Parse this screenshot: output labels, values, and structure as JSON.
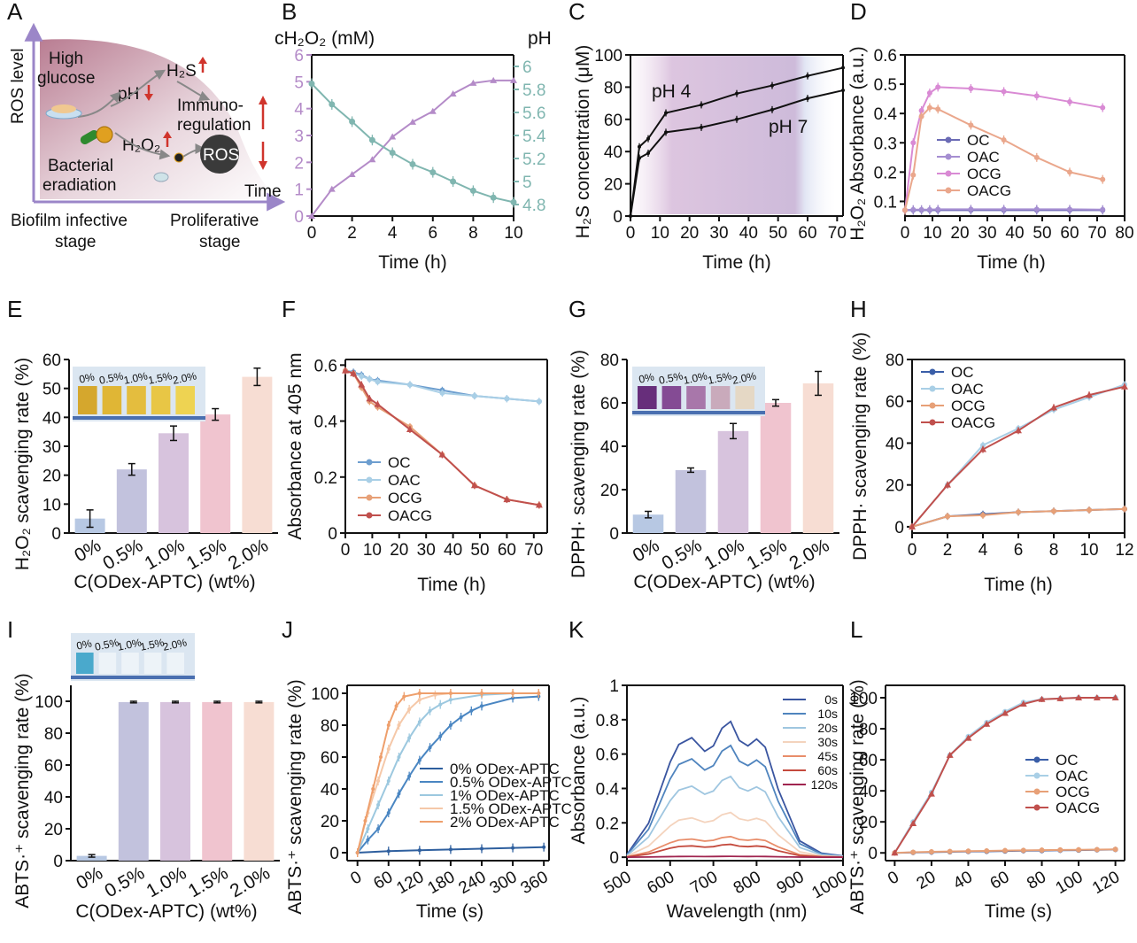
{
  "panel_letters": [
    "A",
    "B",
    "C",
    "D",
    "E",
    "F",
    "G",
    "H",
    "I",
    "J",
    "K",
    "L"
  ],
  "schematic": {
    "ylabel": "ROS level",
    "xlabel": "Time",
    "high_glucose": "High\nglucose",
    "ph": "pH",
    "h2s": "H₂S",
    "h2o2": "H₂O₂",
    "immuno": "Immuno-\nregulation",
    "bacterial": "Bacterial\neradiation",
    "ros": "ROS",
    "stage1": "Biofilm infective\nstage",
    "stage2": "Proliferative\nstage",
    "colors": {
      "fill": "#b97d92",
      "arrow_up": "#d0342c",
      "axis": "#9b86c8"
    }
  },
  "chart_data": [
    {
      "panel": "B",
      "type": "line",
      "xlabel": "Time (h)",
      "ylabel_left": "cH₂O₂ (mM)",
      "ylabel_right": "pH",
      "xlim": [
        0,
        10
      ],
      "ylim": [
        0,
        6
      ],
      "y2lim": [
        4.7,
        6.1
      ],
      "xticks": [
        0,
        2,
        4,
        6,
        8,
        10
      ],
      "yticks": [
        0,
        1,
        2,
        3,
        4,
        5,
        6
      ],
      "y2ticks": [
        4.8,
        5.0,
        5.2,
        5.4,
        5.6,
        5.8,
        6.0
      ],
      "series": [
        {
          "name": "cH₂O₂",
          "color": "#b48bc8",
          "axis": "left",
          "x": [
            0,
            1,
            2,
            3,
            4,
            5,
            6,
            7,
            8,
            9,
            10
          ],
          "y": [
            0,
            1.0,
            1.55,
            2.1,
            2.95,
            3.5,
            3.9,
            4.55,
            4.95,
            5.05,
            5.05
          ]
        },
        {
          "name": "pH",
          "color": "#80b6b0",
          "axis": "right",
          "x": [
            0,
            1,
            2,
            3,
            4,
            5,
            6,
            7,
            8,
            9,
            10
          ],
          "y": [
            5.85,
            5.67,
            5.52,
            5.36,
            5.25,
            5.15,
            5.08,
            5.0,
            4.92,
            4.86,
            4.82
          ]
        }
      ]
    },
    {
      "panel": "C",
      "type": "line",
      "xlabel": "Time (h)",
      "ylabel": "H₂S concentration (μM)",
      "xlim": [
        0,
        72
      ],
      "ylim": [
        0,
        100
      ],
      "xticks": [
        0,
        10,
        20,
        30,
        40,
        50,
        60,
        70
      ],
      "yticks": [
        0,
        20,
        40,
        60,
        80,
        100
      ],
      "annotations": [
        "pH 4",
        "pH 7"
      ],
      "series": [
        {
          "name": "pH 4",
          "color": "#111111",
          "x": [
            0,
            3,
            6,
            12,
            24,
            36,
            48,
            60,
            72
          ],
          "y": [
            0,
            43,
            48,
            64,
            69,
            76,
            81,
            87,
            92
          ]
        },
        {
          "name": "pH 7",
          "color": "#111111",
          "x": [
            0,
            3,
            6,
            12,
            24,
            36,
            48,
            60,
            72
          ],
          "y": [
            0,
            36,
            39,
            52,
            55,
            60,
            66,
            73,
            78
          ]
        }
      ]
    },
    {
      "panel": "D",
      "type": "line",
      "xlabel": "Time (h)",
      "ylabel": "H₂O₂ Absorbance (a.u.)",
      "xlim": [
        0,
        80
      ],
      "ylim": [
        0.05,
        0.6
      ],
      "xticks": [
        0,
        10,
        20,
        30,
        40,
        50,
        60,
        70,
        80
      ],
      "yticks": [
        0.1,
        0.2,
        0.3,
        0.4,
        0.5,
        0.6
      ],
      "series": [
        {
          "name": "OC",
          "color": "#6b6bb5",
          "x": [
            0,
            3,
            6,
            9,
            12,
            24,
            36,
            48,
            60,
            72
          ],
          "y": [
            0.07,
            0.07,
            0.07,
            0.07,
            0.07,
            0.07,
            0.07,
            0.07,
            0.07,
            0.07
          ]
        },
        {
          "name": "OAC",
          "color": "#a58ed1",
          "x": [
            0,
            3,
            6,
            9,
            12,
            24,
            36,
            48,
            60,
            72
          ],
          "y": [
            0.07,
            0.072,
            0.072,
            0.072,
            0.073,
            0.073,
            0.073,
            0.073,
            0.073,
            0.072
          ]
        },
        {
          "name": "OCG",
          "color": "#d98ad4",
          "x": [
            0,
            3,
            6,
            9,
            12,
            24,
            36,
            48,
            60,
            72
          ],
          "y": [
            0.07,
            0.3,
            0.41,
            0.47,
            0.49,
            0.485,
            0.475,
            0.46,
            0.44,
            0.42
          ]
        },
        {
          "name": "OACG",
          "color": "#eaa78c",
          "x": [
            0,
            3,
            6,
            9,
            12,
            24,
            36,
            48,
            60,
            72
          ],
          "y": [
            0.07,
            0.19,
            0.39,
            0.42,
            0.415,
            0.36,
            0.31,
            0.25,
            0.2,
            0.175
          ]
        }
      ]
    },
    {
      "panel": "E",
      "type": "bar",
      "xlabel": "C(ODex-APTC) (wt%)",
      "ylabel": "H₂O₂ scavenging rate (%)",
      "ylim": [
        0,
        60
      ],
      "yticks": [
        0,
        10,
        20,
        30,
        40,
        50,
        60
      ],
      "categories": [
        "0%",
        "0.5%",
        "1.0%",
        "1.5%",
        "2.0%"
      ],
      "values": [
        5,
        22,
        34.5,
        41,
        54
      ],
      "errors": [
        3,
        2,
        2.5,
        2,
        3
      ],
      "colors": [
        "#b7c8e3",
        "#c2c2dd",
        "#d7c3dd",
        "#f0c4cf",
        "#f7ddd3"
      ]
    },
    {
      "panel": "F",
      "type": "line",
      "xlabel": "Time (h)",
      "ylabel": "Absorbance at 405 nm",
      "xlim": [
        0,
        75
      ],
      "ylim": [
        0,
        0.62
      ],
      "xticks": [
        0,
        10,
        20,
        30,
        40,
        50,
        60,
        70
      ],
      "yticks": [
        0,
        0.2,
        0.4,
        0.6
      ],
      "series": [
        {
          "name": "OC",
          "color": "#6d9ecf",
          "x": [
            0,
            3,
            6,
            9,
            12,
            24,
            36,
            48,
            60,
            72
          ],
          "y": [
            0.58,
            0.575,
            0.565,
            0.55,
            0.545,
            0.53,
            0.51,
            0.49,
            0.48,
            0.47
          ]
        },
        {
          "name": "OAC",
          "color": "#a9cfe6",
          "x": [
            0,
            3,
            6,
            9,
            12,
            24,
            36,
            48,
            60,
            72
          ],
          "y": [
            0.58,
            0.57,
            0.56,
            0.55,
            0.54,
            0.53,
            0.5,
            0.49,
            0.48,
            0.47
          ]
        },
        {
          "name": "OCG",
          "color": "#e7a077",
          "x": [
            0,
            3,
            6,
            9,
            12,
            24,
            36,
            48,
            60,
            72
          ],
          "y": [
            0.58,
            0.57,
            0.52,
            0.47,
            0.45,
            0.38,
            0.28,
            0.17,
            0.12,
            0.1
          ]
        },
        {
          "name": "OACG",
          "color": "#c0504d",
          "x": [
            0,
            3,
            6,
            9,
            12,
            24,
            36,
            48,
            60,
            72
          ],
          "y": [
            0.58,
            0.57,
            0.53,
            0.48,
            0.46,
            0.37,
            0.28,
            0.17,
            0.12,
            0.1
          ]
        }
      ]
    },
    {
      "panel": "G",
      "type": "bar",
      "xlabel": "C(ODex-APTC) (wt%)",
      "ylabel": "DPPH· scavenging rate (%)",
      "ylim": [
        0,
        80
      ],
      "yticks": [
        0,
        20,
        40,
        60,
        80
      ],
      "categories": [
        "0%",
        "0.5%",
        "1.0%",
        "1.5%",
        "2.0%"
      ],
      "values": [
        8.5,
        29,
        47,
        60,
        69
      ],
      "errors": [
        1.5,
        1,
        3.5,
        1.5,
        5.5
      ],
      "colors": [
        "#b7c8e3",
        "#c2c2dd",
        "#d7c3dd",
        "#f0c4cf",
        "#f7ddd3"
      ]
    },
    {
      "panel": "H",
      "type": "line",
      "xlabel": "Time (h)",
      "ylabel": "DPPH· scavenging rate (%)",
      "xlim": [
        0,
        12
      ],
      "ylim": [
        -3,
        80
      ],
      "xticks": [
        0,
        2,
        4,
        6,
        8,
        10,
        12
      ],
      "yticks": [
        0,
        20,
        40,
        60,
        80
      ],
      "series": [
        {
          "name": "OC",
          "color": "#3a5ea8",
          "x": [
            0,
            2,
            4,
            6,
            8,
            10,
            12
          ],
          "y": [
            0,
            5,
            6,
            7,
            7.5,
            8,
            8.5
          ]
        },
        {
          "name": "OAC",
          "color": "#a9cfe6",
          "x": [
            0,
            2,
            4,
            6,
            8,
            10,
            12
          ],
          "y": [
            0,
            20,
            39,
            47,
            56,
            62,
            68
          ]
        },
        {
          "name": "OCG",
          "color": "#e7a077",
          "x": [
            0,
            2,
            4,
            6,
            8,
            10,
            12
          ],
          "y": [
            0,
            5,
            5.5,
            7,
            7.5,
            8,
            8.5
          ]
        },
        {
          "name": "OACG",
          "color": "#c0504d",
          "x": [
            0,
            2,
            4,
            6,
            8,
            10,
            12
          ],
          "y": [
            0,
            20,
            37,
            46,
            57,
            63,
            67
          ]
        }
      ]
    },
    {
      "panel": "I",
      "type": "bar",
      "xlabel": "C(ODex-APTC) (wt%)",
      "ylabel": "ABTS·⁺ scavenging rate (%)",
      "ylim": [
        0,
        110
      ],
      "yticks": [
        0,
        20,
        40,
        60,
        80,
        100
      ],
      "categories": [
        "0%",
        "0.5%",
        "1.0%",
        "1.5%",
        "2.0%"
      ],
      "values": [
        3,
        99.5,
        99.5,
        99.5,
        99.5
      ],
      "errors": [
        0.8,
        0.5,
        0.5,
        0.5,
        0.5
      ],
      "colors": [
        "#b7c8e3",
        "#c2c2dd",
        "#d7c3dd",
        "#f0c4cf",
        "#f7ddd3"
      ]
    },
    {
      "panel": "J",
      "type": "line",
      "xlabel": "Time (s)",
      "ylabel": "ABTS·⁺ scavenging rate (%)",
      "xlim": [
        -20,
        370
      ],
      "ylim": [
        -5,
        105
      ],
      "xticks": [
        0,
        60,
        120,
        180,
        240,
        300,
        360
      ],
      "yticks": [
        0,
        20,
        40,
        60,
        80,
        100
      ],
      "series": [
        {
          "name": "0% ODex-APTC",
          "color": "#2e5f9e",
          "x": [
            0,
            60,
            120,
            180,
            240,
            300,
            360
          ],
          "y": [
            0,
            1,
            1.5,
            2,
            2.5,
            3,
            3.5
          ]
        },
        {
          "name": "0.5% ODex-APTC",
          "color": "#4a86c2",
          "x": [
            0,
            20,
            40,
            60,
            80,
            100,
            120,
            140,
            160,
            180,
            200,
            220,
            240,
            300,
            350
          ],
          "y": [
            0,
            8,
            15,
            25,
            37,
            48,
            58,
            66,
            73,
            80,
            85,
            89,
            92,
            97,
            98
          ]
        },
        {
          "name": "1% ODex-APTC",
          "color": "#9cc8df",
          "x": [
            0,
            20,
            40,
            60,
            80,
            100,
            120,
            140,
            160,
            180,
            240,
            300,
            350
          ],
          "y": [
            0,
            15,
            30,
            45,
            60,
            72,
            82,
            89,
            93,
            96,
            99,
            100,
            100
          ]
        },
        {
          "name": "1.5% ODex-APTC",
          "color": "#f5c8a8",
          "x": [
            0,
            20,
            40,
            60,
            80,
            100,
            120,
            150,
            180,
            240,
            300,
            350
          ],
          "y": [
            0,
            25,
            45,
            65,
            80,
            90,
            96,
            99,
            100,
            100,
            100,
            100
          ]
        },
        {
          "name": "2% ODex-APTC",
          "color": "#ee9f6c",
          "x": [
            0,
            15,
            30,
            45,
            60,
            75,
            90,
            120,
            180,
            240,
            300,
            350
          ],
          "y": [
            0,
            20,
            40,
            60,
            80,
            92,
            98,
            100,
            100,
            100,
            100,
            100
          ]
        }
      ]
    },
    {
      "panel": "K",
      "type": "line",
      "xlabel": "Wavelength (nm)",
      "ylabel": "Absorbance (a.u.)",
      "xlim": [
        500,
        1000
      ],
      "ylim": [
        -0.02,
        1.0
      ],
      "xticks": [
        500,
        600,
        700,
        800,
        900,
        1000
      ],
      "yticks": [
        0,
        0.2,
        0.4,
        0.6,
        0.8,
        1.0
      ],
      "spectrum_x": [
        500,
        550,
        600,
        620,
        650,
        680,
        700,
        720,
        740,
        760,
        780,
        800,
        820,
        850,
        900,
        950,
        1000
      ],
      "spectrum_shape": [
        0.02,
        0.25,
        0.7,
        0.83,
        0.88,
        0.78,
        0.82,
        0.95,
        1.0,
        0.86,
        0.82,
        0.87,
        0.81,
        0.5,
        0.12,
        0.03,
        0.01
      ],
      "series": [
        {
          "name": "0s",
          "color": "#3a55a0",
          "peak": 0.79
        },
        {
          "name": "10s",
          "color": "#4f84be",
          "peak": 0.65
        },
        {
          "name": "20s",
          "color": "#9fc6e0",
          "peak": 0.47
        },
        {
          "name": "30s",
          "color": "#f4d3bd",
          "peak": 0.26
        },
        {
          "name": "45s",
          "color": "#e88d6a",
          "peak": 0.12
        },
        {
          "name": "60s",
          "color": "#c44a3d",
          "peak": 0.075
        },
        {
          "name": "120s",
          "color": "#a0244f",
          "peak": 0.005
        }
      ]
    },
    {
      "panel": "L",
      "type": "line",
      "xlabel": "Time (s)",
      "ylabel": "ABTS·⁺ scavenging rate (%)",
      "xlim": [
        -5,
        125
      ],
      "ylim": [
        -5,
        108
      ],
      "xticks": [
        0,
        20,
        40,
        60,
        80,
        100,
        120
      ],
      "yticks": [
        0,
        20,
        40,
        60,
        80,
        100
      ],
      "series": [
        {
          "name": "OC",
          "color": "#3a5ea8",
          "x": [
            0,
            10,
            20,
            30,
            40,
            50,
            60,
            70,
            80,
            90,
            100,
            110,
            120
          ],
          "y": [
            0,
            0.3,
            0.5,
            0.7,
            0.9,
            1,
            1.2,
            1.4,
            1.5,
            1.7,
            1.8,
            2,
            2.2
          ]
        },
        {
          "name": "OAC",
          "color": "#a9cfe6",
          "x": [
            0,
            10,
            20,
            30,
            40,
            50,
            60,
            70,
            80,
            90,
            100,
            110,
            120
          ],
          "y": [
            0,
            20,
            39,
            63,
            75,
            84,
            91,
            97,
            99,
            99.5,
            100,
            100,
            100
          ]
        },
        {
          "name": "OCG",
          "color": "#e7a077",
          "x": [
            0,
            10,
            20,
            30,
            40,
            50,
            60,
            70,
            80,
            90,
            100,
            110,
            120
          ],
          "y": [
            0,
            0.4,
            0.7,
            0.9,
            1.1,
            1.3,
            1.5,
            1.6,
            1.8,
            1.9,
            2,
            2.1,
            2.3
          ]
        },
        {
          "name": "OACG",
          "color": "#c0504d",
          "x": [
            0,
            10,
            20,
            30,
            40,
            50,
            60,
            70,
            80,
            90,
            100,
            110,
            120
          ],
          "y": [
            0,
            19,
            38,
            63,
            74,
            83,
            90,
            96,
            99,
            99.5,
            100,
            100,
            100
          ]
        }
      ]
    }
  ]
}
